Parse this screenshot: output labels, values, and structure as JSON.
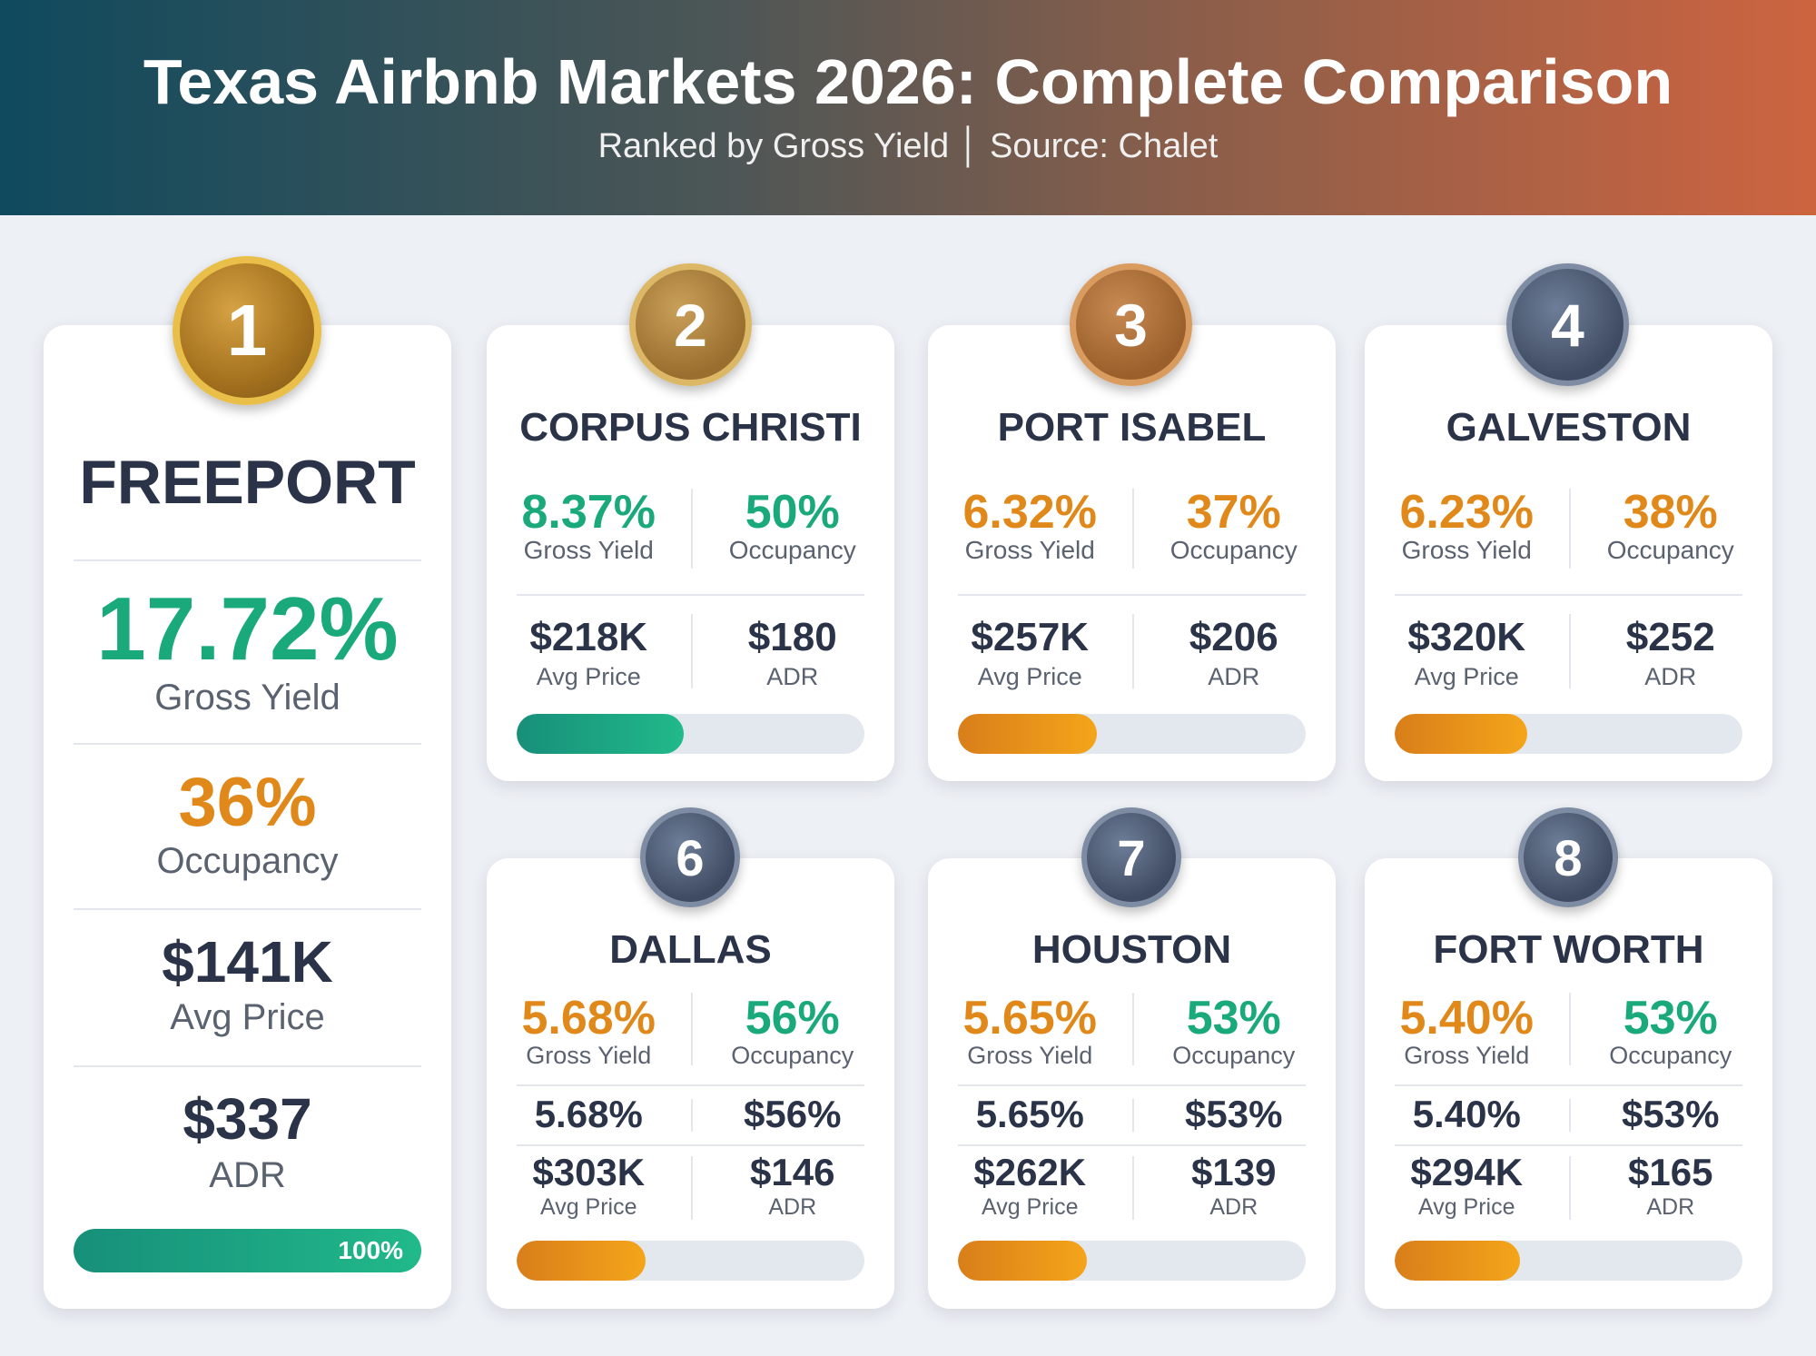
{
  "header": {
    "title": "Texas Airbnb Markets 2026: Complete Comparison",
    "subtitle": "Ranked by Gross Yield │ Source: Chalet"
  },
  "colors": {
    "green": "#19a97b",
    "orange": "#e0891a",
    "dark": "#2a3347"
  },
  "labels": {
    "gross_yield": "Gross Yield",
    "occupancy": "Occupancy",
    "avg_price": "Avg Price",
    "adr": "ADR"
  },
  "featured": {
    "rank": "1",
    "city": "FREEPORT",
    "gross_yield": "17.72%",
    "occupancy": "36%",
    "avg_price": "$141K",
    "adr": "$337",
    "bar_label": "100%",
    "bar_percent": 100
  },
  "markets": [
    {
      "rank": "2",
      "city": "CORPUS CHRISTI",
      "gross_yield": "8.37%",
      "occupancy": "50%",
      "avg_price": "$218K",
      "adr": "$180",
      "bar_percent": 48
    },
    {
      "rank": "3",
      "city": "PORT ISABEL",
      "gross_yield": "6.32%",
      "occupancy": "37%",
      "avg_price": "$257K",
      "adr": "$206",
      "bar_percent": 40
    },
    {
      "rank": "4",
      "city": "GALVESTON",
      "gross_yield": "6.23%",
      "occupancy": "38%",
      "avg_price": "$320K",
      "adr": "$252",
      "bar_percent": 38
    },
    {
      "rank": "6",
      "city": "DALLAS",
      "gross_yield": "5.68%",
      "occupancy": "56%",
      "mid_left": "5.68%",
      "mid_right": "$56%",
      "avg_price": "$303K",
      "adr": "$146",
      "bar_percent": 37
    },
    {
      "rank": "7",
      "city": "HOUSTON",
      "gross_yield": "5.65%",
      "occupancy": "53%",
      "mid_left": "5.65%",
      "mid_right": "$53%",
      "avg_price": "$262K",
      "adr": "$139",
      "bar_percent": 37
    },
    {
      "rank": "8",
      "city": "FORT WORTH",
      "gross_yield": "5.40%",
      "occupancy": "53%",
      "mid_left": "5.40%",
      "mid_right": "$53%",
      "avg_price": "$294K",
      "adr": "$165",
      "bar_percent": 36
    }
  ]
}
